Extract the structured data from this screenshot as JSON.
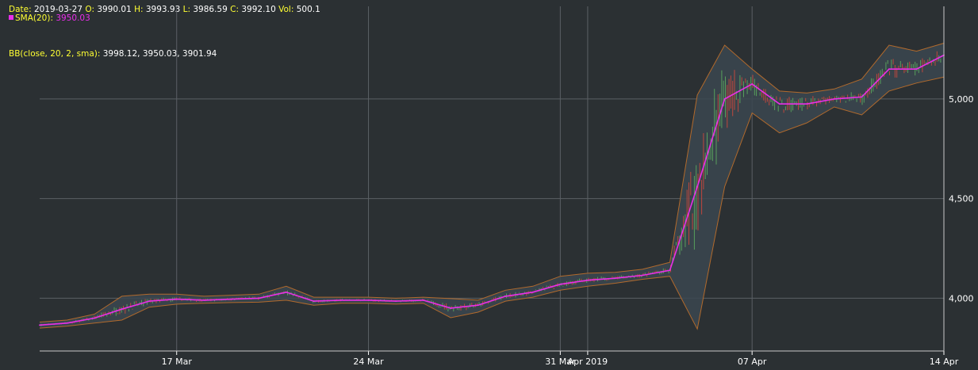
{
  "ohlc": {
    "date_label": "Date:",
    "date": "2019-03-27",
    "o_label": "O:",
    "o": "3990.01",
    "h_label": "H:",
    "h": "3993.93",
    "l_label": "L:",
    "l": "3986.59",
    "c_label": "C:",
    "c": "3992.10",
    "v_label": "Vol:",
    "v": "500.1"
  },
  "sma": {
    "label": "SMA(20):",
    "value": "3950.03"
  },
  "bb": {
    "label": "BB(close, 20, 2, sma):",
    "value": "3998.12, 3950.03, 3901.94"
  },
  "colors": {
    "background": "#2b3033",
    "grid": "#5b6065",
    "axis_text": "#ffffff",
    "legend_label": "#ffff33",
    "sma": "#e92fe9",
    "band_fill": "#3b4650",
    "band_edge": "#b26a2c",
    "candle_up": "#5fb760",
    "candle_down": "#e0483a"
  },
  "chart_data": {
    "type": "line",
    "title": "",
    "xlabel": "",
    "ylabel": "",
    "x_tick_labels": [
      "17 Mar",
      "24 Mar",
      "31 Mar",
      "Apr 2019",
      "07 Apr",
      "14 Apr"
    ],
    "y_tick_labels": [
      "4,000",
      "4,500",
      "5,000"
    ],
    "x_ticks": [
      "2019-03-17",
      "2019-03-24",
      "2019-03-31",
      "2019-04-01",
      "2019-04-07",
      "2019-04-14"
    ],
    "y_ticks": [
      4000,
      4500,
      5000
    ],
    "xlim": [
      "2019-03-12",
      "2019-04-14"
    ],
    "ylim": [
      3735,
      5465
    ],
    "grid": true,
    "series": [
      {
        "name": "SMA(20)",
        "x": [
          "2019-03-12",
          "2019-03-13",
          "2019-03-14",
          "2019-03-15",
          "2019-03-16",
          "2019-03-17",
          "2019-03-18",
          "2019-03-19",
          "2019-03-20",
          "2019-03-21",
          "2019-03-22",
          "2019-03-23",
          "2019-03-24",
          "2019-03-25",
          "2019-03-26",
          "2019-03-27",
          "2019-03-28",
          "2019-03-29",
          "2019-03-30",
          "2019-03-31",
          "2019-04-01",
          "2019-04-02",
          "2019-04-03",
          "2019-04-04",
          "2019-04-05",
          "2019-04-06",
          "2019-04-07",
          "2019-04-08",
          "2019-04-09",
          "2019-04-10",
          "2019-04-11",
          "2019-04-12",
          "2019-04-13",
          "2019-04-14"
        ],
        "values": [
          3865,
          3875,
          3900,
          3945,
          3985,
          3995,
          3990,
          3995,
          4000,
          4030,
          3985,
          3990,
          3990,
          3985,
          3990,
          3950,
          3965,
          4010,
          4030,
          4070,
          4090,
          4100,
          4115,
          4140,
          4560,
          5000,
          5075,
          4975,
          4975,
          5000,
          5010,
          5150,
          5150,
          5220
        ]
      },
      {
        "name": "BB upper",
        "x": [
          "2019-03-12",
          "2019-03-13",
          "2019-03-14",
          "2019-03-15",
          "2019-03-16",
          "2019-03-17",
          "2019-03-18",
          "2019-03-19",
          "2019-03-20",
          "2019-03-21",
          "2019-03-22",
          "2019-03-23",
          "2019-03-24",
          "2019-03-25",
          "2019-03-26",
          "2019-03-27",
          "2019-03-28",
          "2019-03-29",
          "2019-03-30",
          "2019-03-31",
          "2019-04-01",
          "2019-04-02",
          "2019-04-03",
          "2019-04-04",
          "2019-04-05",
          "2019-04-06",
          "2019-04-07",
          "2019-04-08",
          "2019-04-09",
          "2019-04-10",
          "2019-04-11",
          "2019-04-12",
          "2019-04-13",
          "2019-04-14"
        ],
        "values": [
          3880,
          3890,
          3920,
          4010,
          4020,
          4020,
          4010,
          4015,
          4020,
          4060,
          4005,
          4005,
          4005,
          4000,
          4005,
          3998,
          3990,
          4040,
          4060,
          4110,
          4125,
          4130,
          4145,
          4180,
          5020,
          5270,
          5150,
          5040,
          5030,
          5050,
          5100,
          5270,
          5240,
          5280
        ]
      },
      {
        "name": "BB lower",
        "x": [
          "2019-03-12",
          "2019-03-13",
          "2019-03-14",
          "2019-03-15",
          "2019-03-16",
          "2019-03-17",
          "2019-03-18",
          "2019-03-19",
          "2019-03-20",
          "2019-03-21",
          "2019-03-22",
          "2019-03-23",
          "2019-03-24",
          "2019-03-25",
          "2019-03-26",
          "2019-03-27",
          "2019-03-28",
          "2019-03-29",
          "2019-03-30",
          "2019-03-31",
          "2019-04-01",
          "2019-04-02",
          "2019-04-03",
          "2019-04-04",
          "2019-04-05",
          "2019-04-06",
          "2019-04-07",
          "2019-04-08",
          "2019-04-09",
          "2019-04-10",
          "2019-04-11",
          "2019-04-12",
          "2019-04-13",
          "2019-04-14"
        ],
        "values": [
          3850,
          3860,
          3875,
          3890,
          3955,
          3970,
          3975,
          3978,
          3980,
          3990,
          3965,
          3975,
          3975,
          3970,
          3975,
          3902,
          3930,
          3985,
          4005,
          4040,
          4060,
          4075,
          4095,
          4110,
          3845,
          4560,
          4930,
          4830,
          4880,
          4960,
          4920,
          5040,
          5080,
          5110
        ]
      }
    ]
  }
}
